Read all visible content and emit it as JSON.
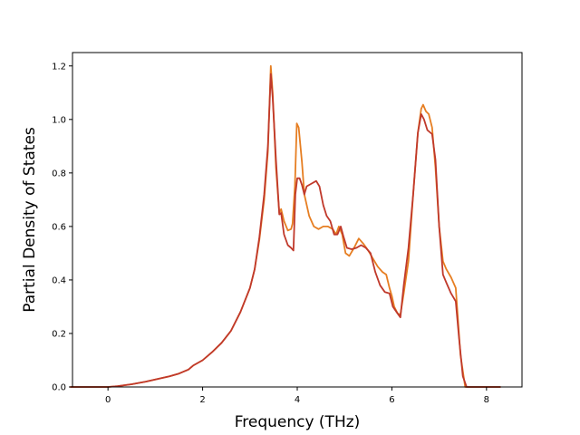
{
  "chart_data": {
    "type": "line",
    "title": "",
    "xlabel": "Frequency (THz)",
    "ylabel": "Partial Density of States",
    "xlim": [
      -0.75,
      8.75
    ],
    "ylim": [
      0,
      1.25
    ],
    "xticks": [
      0,
      2,
      4,
      6,
      8
    ],
    "yticks": [
      0.0,
      0.2,
      0.4,
      0.6,
      0.8,
      1.0,
      1.2
    ],
    "xtick_labels": [
      "0",
      "2",
      "4",
      "6",
      "8"
    ],
    "ytick_labels": [
      "0.0",
      "0.2",
      "0.4",
      "0.6",
      "0.8",
      "1.0",
      "1.2"
    ],
    "grid": false,
    "legend": "none",
    "series": [
      {
        "color": "#e67e22",
        "points": [
          [
            -0.8,
            0
          ],
          [
            0,
            0
          ],
          [
            0.2,
            0.003
          ],
          [
            0.5,
            0.01
          ],
          [
            0.8,
            0.02
          ],
          [
            1.0,
            0.028
          ],
          [
            1.3,
            0.04
          ],
          [
            1.5,
            0.05
          ],
          [
            1.7,
            0.065
          ],
          [
            1.8,
            0.08
          ],
          [
            2.0,
            0.1
          ],
          [
            2.2,
            0.13
          ],
          [
            2.4,
            0.165
          ],
          [
            2.6,
            0.21
          ],
          [
            2.8,
            0.28
          ],
          [
            3.0,
            0.37
          ],
          [
            3.1,
            0.44
          ],
          [
            3.2,
            0.55
          ],
          [
            3.3,
            0.7
          ],
          [
            3.38,
            0.88
          ],
          [
            3.44,
            1.2
          ],
          [
            3.48,
            1.1
          ],
          [
            3.55,
            0.82
          ],
          [
            3.62,
            0.65
          ],
          [
            3.66,
            0.665
          ],
          [
            3.72,
            0.62
          ],
          [
            3.8,
            0.585
          ],
          [
            3.87,
            0.59
          ],
          [
            3.9,
            0.61
          ],
          [
            3.95,
            0.75
          ],
          [
            3.99,
            0.985
          ],
          [
            4.03,
            0.97
          ],
          [
            4.1,
            0.84
          ],
          [
            4.15,
            0.72
          ],
          [
            4.25,
            0.64
          ],
          [
            4.35,
            0.6
          ],
          [
            4.45,
            0.59
          ],
          [
            4.55,
            0.6
          ],
          [
            4.65,
            0.6
          ],
          [
            4.75,
            0.59
          ],
          [
            4.82,
            0.57
          ],
          [
            4.88,
            0.6
          ],
          [
            4.95,
            0.57
          ],
          [
            5.02,
            0.5
          ],
          [
            5.1,
            0.49
          ],
          [
            5.2,
            0.52
          ],
          [
            5.3,
            0.555
          ],
          [
            5.4,
            0.535
          ],
          [
            5.5,
            0.51
          ],
          [
            5.6,
            0.48
          ],
          [
            5.7,
            0.45
          ],
          [
            5.8,
            0.43
          ],
          [
            5.88,
            0.42
          ],
          [
            5.95,
            0.37
          ],
          [
            6.0,
            0.34
          ],
          [
            6.05,
            0.3
          ],
          [
            6.12,
            0.275
          ],
          [
            6.18,
            0.27
          ],
          [
            6.25,
            0.35
          ],
          [
            6.35,
            0.47
          ],
          [
            6.45,
            0.72
          ],
          [
            6.55,
            0.95
          ],
          [
            6.62,
            1.04
          ],
          [
            6.66,
            1.055
          ],
          [
            6.72,
            1.03
          ],
          [
            6.78,
            1.02
          ],
          [
            6.85,
            0.97
          ],
          [
            6.92,
            0.82
          ],
          [
            7.0,
            0.6
          ],
          [
            7.08,
            0.47
          ],
          [
            7.15,
            0.44
          ],
          [
            7.25,
            0.41
          ],
          [
            7.35,
            0.37
          ],
          [
            7.45,
            0.12
          ],
          [
            7.55,
            0.0
          ],
          [
            8.3,
            0.0
          ]
        ]
      },
      {
        "color": "#c0392b",
        "points": [
          [
            -0.8,
            0
          ],
          [
            0,
            0
          ],
          [
            0.2,
            0.003
          ],
          [
            0.5,
            0.01
          ],
          [
            0.8,
            0.02
          ],
          [
            1.0,
            0.028
          ],
          [
            1.3,
            0.04
          ],
          [
            1.5,
            0.05
          ],
          [
            1.7,
            0.065
          ],
          [
            1.8,
            0.08
          ],
          [
            2.0,
            0.1
          ],
          [
            2.2,
            0.13
          ],
          [
            2.4,
            0.165
          ],
          [
            2.6,
            0.21
          ],
          [
            2.8,
            0.28
          ],
          [
            3.0,
            0.37
          ],
          [
            3.1,
            0.44
          ],
          [
            3.2,
            0.56
          ],
          [
            3.3,
            0.72
          ],
          [
            3.38,
            0.9
          ],
          [
            3.44,
            1.17
          ],
          [
            3.48,
            1.08
          ],
          [
            3.55,
            0.85
          ],
          [
            3.62,
            0.645
          ],
          [
            3.66,
            0.65
          ],
          [
            3.72,
            0.57
          ],
          [
            3.8,
            0.53
          ],
          [
            3.87,
            0.52
          ],
          [
            3.92,
            0.51
          ],
          [
            3.96,
            0.72
          ],
          [
            4.0,
            0.78
          ],
          [
            4.05,
            0.78
          ],
          [
            4.1,
            0.755
          ],
          [
            4.15,
            0.72
          ],
          [
            4.2,
            0.75
          ],
          [
            4.3,
            0.76
          ],
          [
            4.4,
            0.77
          ],
          [
            4.47,
            0.75
          ],
          [
            4.55,
            0.68
          ],
          [
            4.62,
            0.64
          ],
          [
            4.7,
            0.62
          ],
          [
            4.78,
            0.57
          ],
          [
            4.85,
            0.57
          ],
          [
            4.92,
            0.6
          ],
          [
            4.98,
            0.56
          ],
          [
            5.05,
            0.52
          ],
          [
            5.15,
            0.515
          ],
          [
            5.25,
            0.52
          ],
          [
            5.35,
            0.53
          ],
          [
            5.45,
            0.52
          ],
          [
            5.55,
            0.5
          ],
          [
            5.65,
            0.43
          ],
          [
            5.75,
            0.38
          ],
          [
            5.85,
            0.355
          ],
          [
            5.95,
            0.35
          ],
          [
            6.02,
            0.3
          ],
          [
            6.1,
            0.28
          ],
          [
            6.18,
            0.26
          ],
          [
            6.25,
            0.38
          ],
          [
            6.35,
            0.52
          ],
          [
            6.45,
            0.72
          ],
          [
            6.55,
            0.95
          ],
          [
            6.62,
            1.02
          ],
          [
            6.68,
            1.0
          ],
          [
            6.75,
            0.96
          ],
          [
            6.85,
            0.945
          ],
          [
            6.92,
            0.85
          ],
          [
            7.0,
            0.6
          ],
          [
            7.08,
            0.42
          ],
          [
            7.15,
            0.39
          ],
          [
            7.25,
            0.35
          ],
          [
            7.35,
            0.32
          ],
          [
            7.42,
            0.18
          ],
          [
            7.5,
            0.04
          ],
          [
            7.58,
            0.0
          ],
          [
            8.3,
            0.0
          ]
        ]
      }
    ]
  }
}
